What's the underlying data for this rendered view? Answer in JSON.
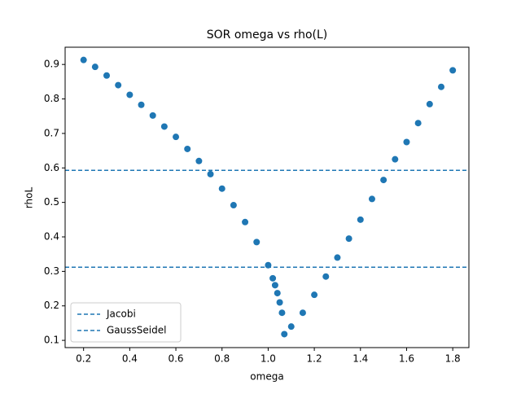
{
  "chart_data": {
    "type": "scatter",
    "title": "SOR omega vs rho(L)",
    "x_label": "omega",
    "y_label": "rhoL",
    "x": [
      0.2,
      0.25,
      0.3,
      0.35,
      0.4,
      0.45,
      0.5,
      0.55,
      0.6,
      0.65,
      0.7,
      0.75,
      0.8,
      0.85,
      0.9,
      0.95,
      1.0,
      1.02,
      1.03,
      1.04,
      1.05,
      1.06,
      1.07,
      1.1,
      1.15,
      1.2,
      1.25,
      1.3,
      1.35,
      1.4,
      1.45,
      1.5,
      1.55,
      1.6,
      1.65,
      1.7,
      1.75,
      1.8
    ],
    "values": [
      0.913,
      0.893,
      0.868,
      0.84,
      0.812,
      0.783,
      0.752,
      0.72,
      0.69,
      0.655,
      0.62,
      0.582,
      0.54,
      0.492,
      0.443,
      0.385,
      0.318,
      0.28,
      0.26,
      0.237,
      0.21,
      0.18,
      0.118,
      0.14,
      0.18,
      0.232,
      0.285,
      0.34,
      0.395,
      0.45,
      0.51,
      0.565,
      0.625,
      0.675,
      0.73,
      0.785,
      0.835,
      0.883
    ],
    "color": "#1f77b4",
    "hlines": [
      {
        "name": "Jacobi",
        "value": 0.593,
        "color": "#1f77b4"
      },
      {
        "name": "GaussSeidel",
        "value": 0.312,
        "color": "#1f77b4"
      }
    ],
    "legend": "lower left",
    "xlim": [
      0.12,
      1.87
    ],
    "ylim": [
      0.079,
      0.95
    ],
    "xticks": [
      0.2,
      0.4,
      0.6,
      0.8,
      {
        "value": 1,
        "label": "1.0"
      },
      1.2,
      1.4,
      1.6,
      1.8
    ],
    "yticks": [
      0.1,
      0.2,
      0.3,
      0.4,
      0.5,
      0.6,
      0.7,
      0.8,
      0.9
    ]
  }
}
